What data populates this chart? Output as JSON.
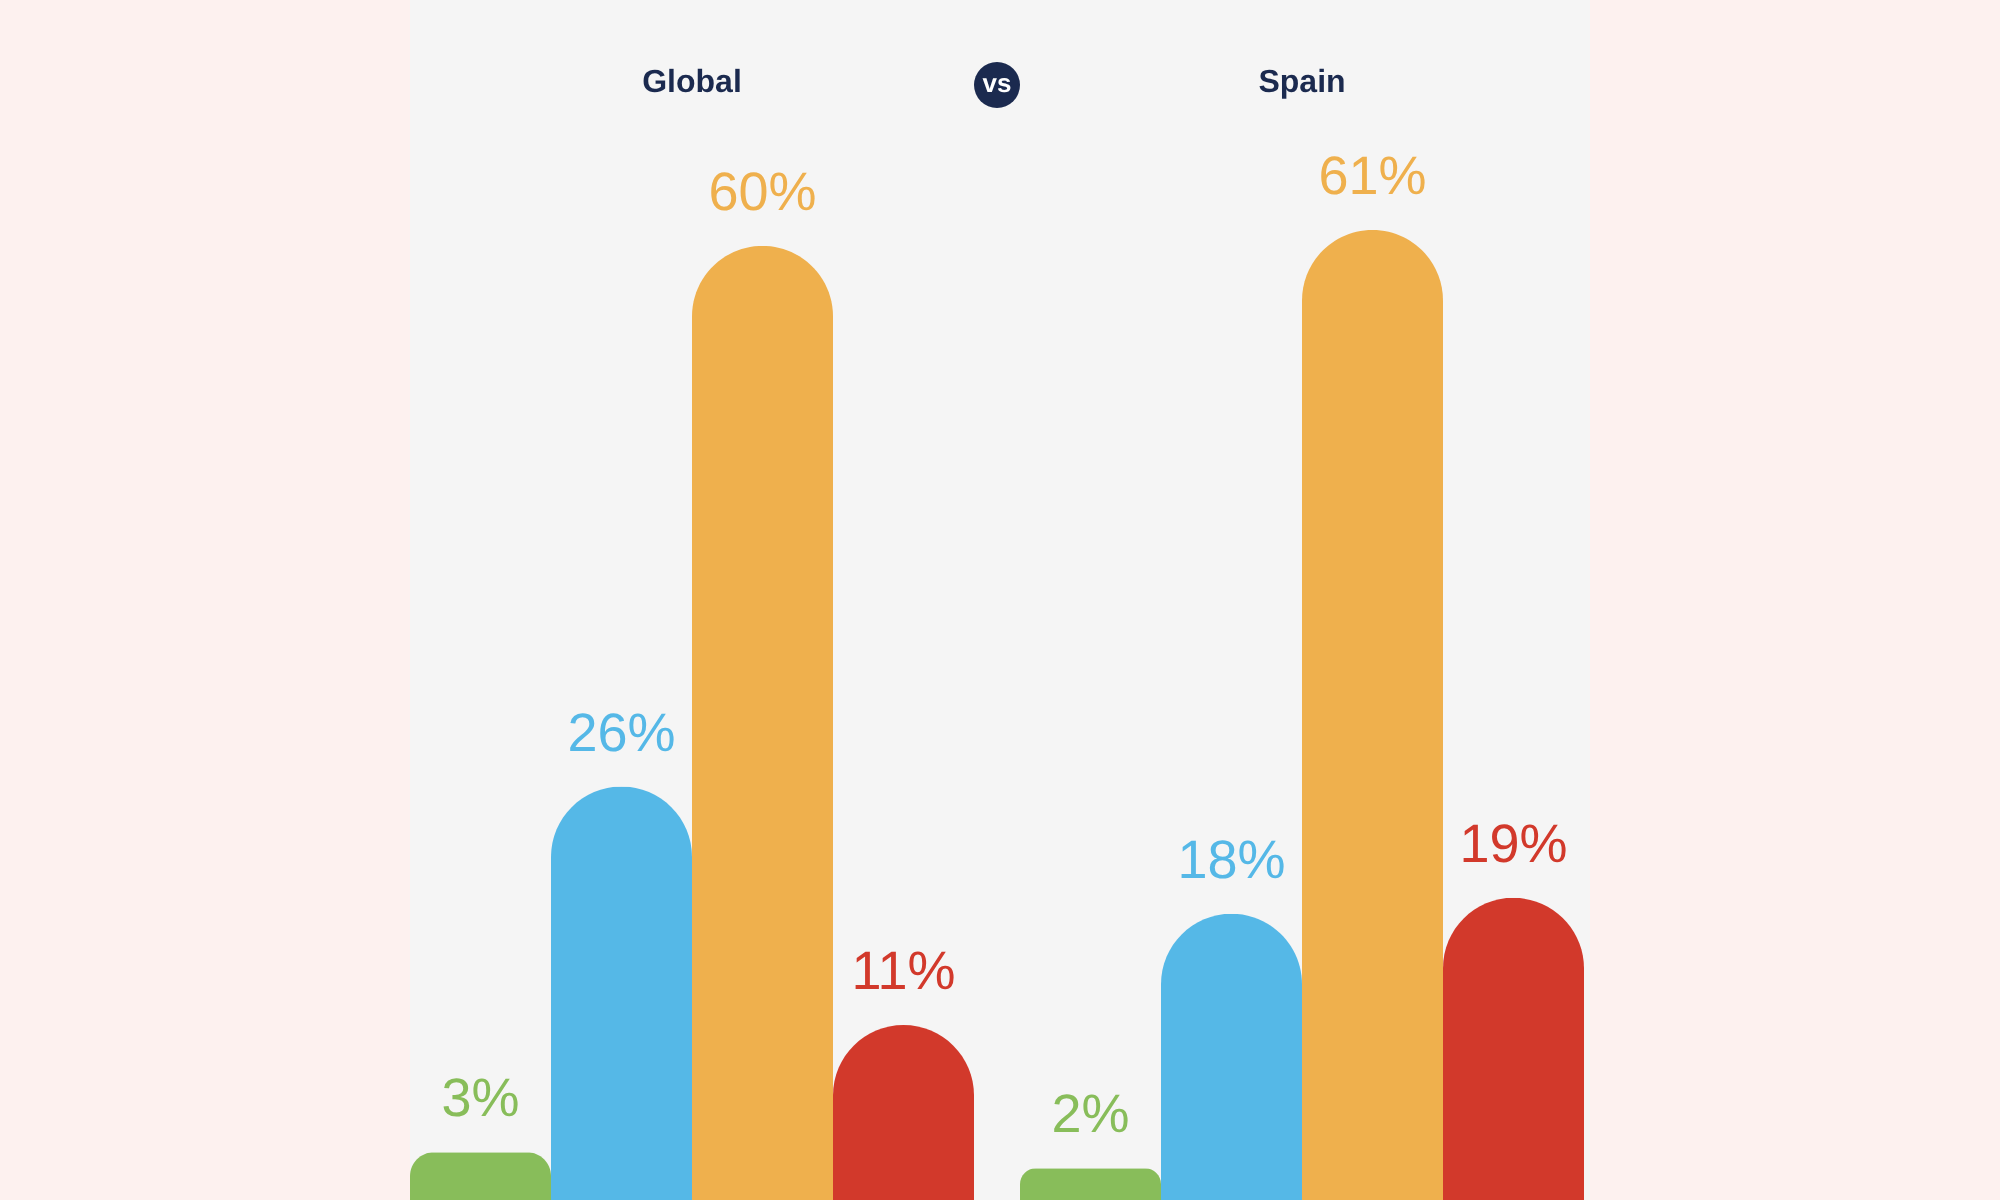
{
  "chart_data": [
    {
      "type": "bar",
      "title": "Global",
      "categories": [
        null,
        null,
        null,
        null
      ],
      "values": [
        3,
        26,
        60,
        11
      ],
      "colors": [
        "#88bd5a",
        "#55b8e7",
        "#efb04d",
        "#d2392b"
      ],
      "value_labels": [
        "3%",
        "26%",
        "60%",
        "11%"
      ],
      "annotations": [
        "vs"
      ]
    },
    {
      "type": "bar",
      "title": "Spain",
      "categories": [
        null,
        null,
        null,
        null
      ],
      "values": [
        2,
        18,
        61,
        19
      ],
      "colors": [
        "#88bd5a",
        "#55b8e7",
        "#efb04d",
        "#d2392b"
      ],
      "value_labels": [
        "2%",
        "18%",
        "61%",
        "19%"
      ]
    }
  ]
}
